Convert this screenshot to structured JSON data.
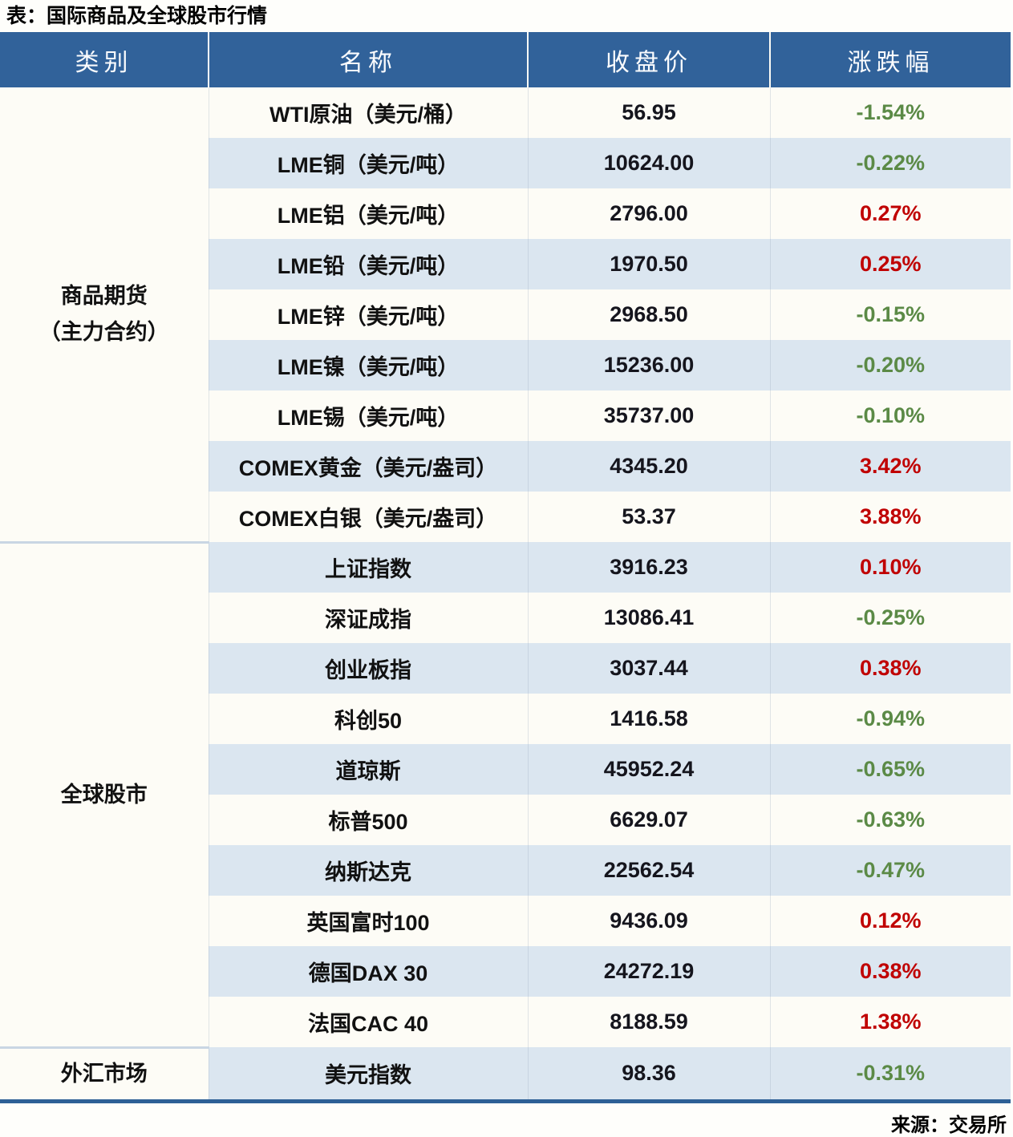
{
  "title": "表：国际商品及全球股市行情",
  "source": "来源：交易所",
  "columns": [
    "类别",
    "名称",
    "收盘价",
    "涨跌幅"
  ],
  "colors": {
    "header_bg": "#31629A",
    "header_text": "#FBFCFE",
    "row_bg": "#FDFCF6",
    "row_alt_bg": "#DBE6F0",
    "bottom_border": "#2E6096",
    "up": "#C00000",
    "down": "#5B8A46"
  },
  "groups": [
    {
      "label": "商品期货\n（主力合约）",
      "span": 9
    },
    {
      "label": "全球股市",
      "span": 10
    },
    {
      "label": "外汇市场",
      "span": 1
    }
  ],
  "rows": [
    {
      "name": "WTI原油（美元/桶）",
      "close": "56.95",
      "change": "-1.54%"
    },
    {
      "name": "LME铜（美元/吨）",
      "close": "10624.00",
      "change": "-0.22%"
    },
    {
      "name": "LME铝（美元/吨）",
      "close": "2796.00",
      "change": "0.27%"
    },
    {
      "name": "LME铅（美元/吨）",
      "close": "1970.50",
      "change": "0.25%"
    },
    {
      "name": "LME锌（美元/吨）",
      "close": "2968.50",
      "change": "-0.15%"
    },
    {
      "name": "LME镍（美元/吨）",
      "close": "15236.00",
      "change": "-0.20%"
    },
    {
      "name": "LME锡（美元/吨）",
      "close": "35737.00",
      "change": "-0.10%"
    },
    {
      "name": "COMEX黄金（美元/盎司）",
      "close": "4345.20",
      "change": "3.42%"
    },
    {
      "name": "COMEX白银（美元/盎司）",
      "close": "53.37",
      "change": "3.88%"
    },
    {
      "name": "上证指数",
      "close": "3916.23",
      "change": "0.10%"
    },
    {
      "name": "深证成指",
      "close": "13086.41",
      "change": "-0.25%"
    },
    {
      "name": "创业板指",
      "close": "3037.44",
      "change": "0.38%"
    },
    {
      "name": "科创50",
      "close": "1416.58",
      "change": "-0.94%"
    },
    {
      "name": "道琼斯",
      "close": "45952.24",
      "change": "-0.65%"
    },
    {
      "name": "标普500",
      "close": "6629.07",
      "change": "-0.63%"
    },
    {
      "name": "纳斯达克",
      "close": "22562.54",
      "change": "-0.47%"
    },
    {
      "name": "英国富时100",
      "close": "9436.09",
      "change": "0.12%"
    },
    {
      "name": "德国DAX 30",
      "close": "24272.19",
      "change": "0.38%"
    },
    {
      "name": "法国CAC 40",
      "close": "8188.59",
      "change": "1.38%"
    },
    {
      "name": "美元指数",
      "close": "98.36",
      "change": "-0.31%"
    }
  ]
}
